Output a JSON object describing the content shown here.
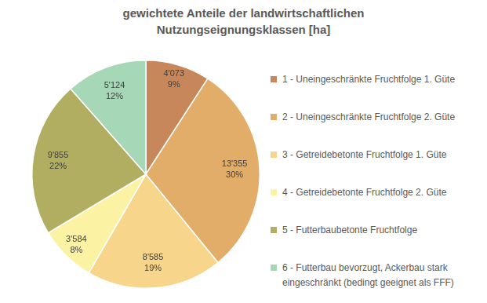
{
  "chart_data": {
    "type": "pie",
    "title": [
      "gewichtete Anteile der landwirtschaftlichen",
      "Nutzungseignungsklassen [ha]"
    ],
    "categories": [
      "1 - Uneingeschränkte Fruchtfolge 1. Güte",
      "2 - Uneingeschränkte Fruchtfolge 2. Güte",
      "3 - Getreidebetonte Fruchtfolge 1. Güte",
      "4 - Getreidebetonte Fruchtfolge 2. Güte",
      "5 - Futterbaubetonte Fruchtfolge",
      "6 - Futterbau bevorzugt, Ackerbau stark eingeschränkt (bedingt geeignet als FFF)"
    ],
    "values": [
      4073,
      13355,
      8585,
      3584,
      9855,
      5124
    ],
    "value_labels": [
      "4'073",
      "13'355",
      "8'585",
      "3'584",
      "9'855",
      "5'124"
    ],
    "percentages": [
      {
        "value": 9,
        "label": "9%"
      },
      {
        "value": 30,
        "label": "30%"
      },
      {
        "value": 19,
        "label": "19%"
      },
      {
        "value": 8,
        "label": "8%"
      },
      {
        "value": 22,
        "label": "22%"
      },
      {
        "value": 12,
        "label": "12%"
      }
    ],
    "colors": [
      "#c8875a",
      "#e2ad68",
      "#f7d58b",
      "#fbf3a3",
      "#b1ae62",
      "#a6d7b6"
    ],
    "legend": "right",
    "data_labels": true
  }
}
